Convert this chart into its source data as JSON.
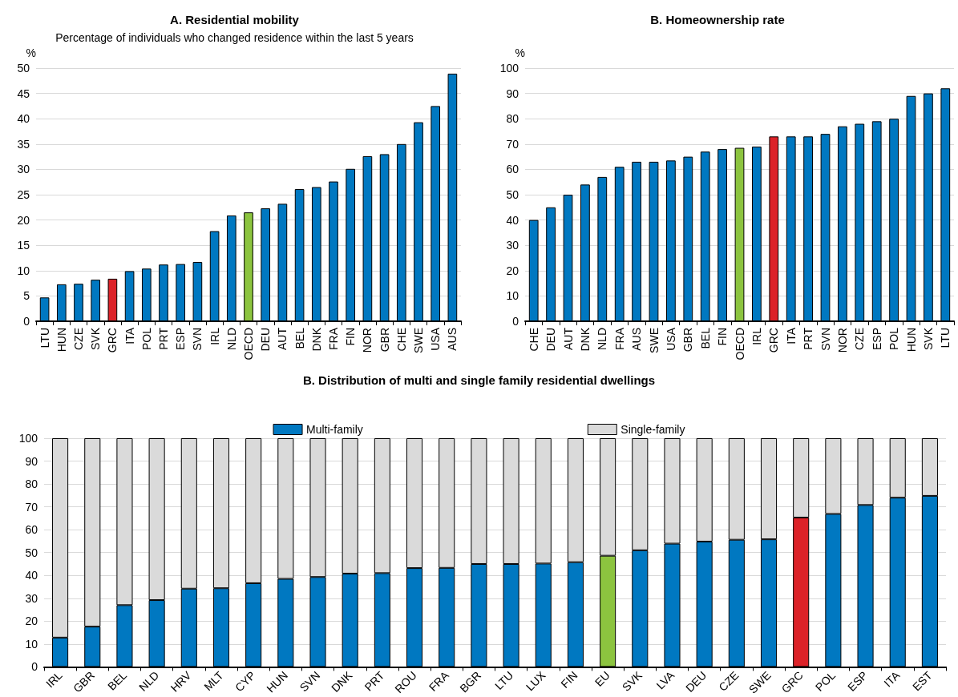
{
  "chart_data": [
    {
      "type": "bar",
      "title": "A. Residential mobility",
      "subtitle": "Percentage of individuals who changed residence within the last 5 years",
      "ylabel": "%",
      "categories": [
        "LTU",
        "HUN",
        "CZE",
        "SVK",
        "GRC",
        "ITA",
        "POL",
        "PRT",
        "ESP",
        "SVN",
        "IRL",
        "NLD",
        "OECD",
        "DEU",
        "AUT",
        "BEL",
        "DNK",
        "FRA",
        "FIN",
        "NOR",
        "GBR",
        "CHE",
        "SWE",
        "USA",
        "AUS"
      ],
      "values": [
        4.7,
        7.3,
        7.4,
        8.2,
        8.4,
        9.9,
        10.4,
        11.2,
        11.3,
        11.7,
        17.8,
        20.9,
        21.5,
        22.3,
        23.2,
        26.1,
        26.5,
        27.6,
        30.1,
        32.6,
        33.0,
        35.0,
        39.3,
        42.5,
        48.9
      ],
      "colors": [
        "#0078c1",
        "#0078c1",
        "#0078c1",
        "#0078c1",
        "#dc2228",
        "#0078c1",
        "#0078c1",
        "#0078c1",
        "#0078c1",
        "#0078c1",
        "#0078c1",
        "#0078c1",
        "#8cc43f",
        "#0078c1",
        "#0078c1",
        "#0078c1",
        "#0078c1",
        "#0078c1",
        "#0078c1",
        "#0078c1",
        "#0078c1",
        "#0078c1",
        "#0078c1",
        "#0078c1",
        "#0078c1"
      ],
      "ylim": [
        0,
        50
      ],
      "yticks": [
        0,
        5,
        10,
        15,
        20,
        25,
        30,
        35,
        40,
        45,
        50
      ],
      "grid": "y"
    },
    {
      "type": "bar",
      "title": "B. Homeownership rate",
      "ylabel": "%",
      "categories": [
        "CHE",
        "DEU",
        "AUT",
        "DNK",
        "NLD",
        "FRA",
        "AUS",
        "SWE",
        "USA",
        "GBR",
        "BEL",
        "FIN",
        "OECD",
        "IRL",
        "GRC",
        "ITA",
        "PRT",
        "SVN",
        "NOR",
        "CZE",
        "ESP",
        "POL",
        "HUN",
        "SVK",
        "LTU"
      ],
      "values": [
        40,
        45,
        50,
        54,
        57,
        61,
        63,
        63,
        63.5,
        65,
        67,
        68,
        68.5,
        69,
        73,
        73,
        73,
        74,
        77,
        78,
        79,
        80,
        89,
        90,
        92
      ],
      "colors": [
        "#0078c1",
        "#0078c1",
        "#0078c1",
        "#0078c1",
        "#0078c1",
        "#0078c1",
        "#0078c1",
        "#0078c1",
        "#0078c1",
        "#0078c1",
        "#0078c1",
        "#0078c1",
        "#8cc43f",
        "#0078c1",
        "#dc2228",
        "#0078c1",
        "#0078c1",
        "#0078c1",
        "#0078c1",
        "#0078c1",
        "#0078c1",
        "#0078c1",
        "#0078c1",
        "#0078c1",
        "#0078c1"
      ],
      "ylim": [
        0,
        100
      ],
      "yticks": [
        0,
        10,
        20,
        30,
        40,
        50,
        60,
        70,
        80,
        90,
        100
      ],
      "grid": "y"
    },
    {
      "type": "bar",
      "title": "B. Distribution of multi and single family residential dwellings",
      "stacked": true,
      "legend": "top",
      "categories": [
        "IRL",
        "GBR",
        "BEL",
        "NLD",
        "HRV",
        "MLT",
        "CYP",
        "HUN",
        "SVN",
        "DNK",
        "PRT",
        "ROU",
        "FRA",
        "BGR",
        "LTU",
        "LUX",
        "FIN",
        "EU",
        "SVK",
        "LVA",
        "DEU",
        "CZE",
        "SWE",
        "GRC",
        "POL",
        "ESP",
        "ITA",
        "EST"
      ],
      "series": [
        {
          "name": "Multi-family",
          "color": "#0078c1",
          "colors": [
            "#0078c1",
            "#0078c1",
            "#0078c1",
            "#0078c1",
            "#0078c1",
            "#0078c1",
            "#0078c1",
            "#0078c1",
            "#0078c1",
            "#0078c1",
            "#0078c1",
            "#0078c1",
            "#0078c1",
            "#0078c1",
            "#0078c1",
            "#0078c1",
            "#0078c1",
            "#8cc43f",
            "#0078c1",
            "#0078c1",
            "#0078c1",
            "#0078c1",
            "#0078c1",
            "#dc2228",
            "#0078c1",
            "#0078c1",
            "#0078c1",
            "#0078c1"
          ],
          "values": [
            12.8,
            17.6,
            27,
            29.2,
            34.2,
            34.4,
            36.6,
            38.5,
            39.3,
            40.8,
            41,
            43.2,
            43.3,
            45,
            45,
            45.2,
            45.8,
            48.6,
            51,
            53.9,
            54.8,
            55.6,
            55.8,
            65.3,
            66.9,
            70.8,
            74,
            74.8
          ]
        },
        {
          "name": "Single-family",
          "color": "#dadada",
          "values": [
            87.2,
            82.4,
            73,
            70.8,
            65.8,
            65.6,
            63.4,
            61.5,
            60.7,
            59.2,
            59,
            56.8,
            56.7,
            55,
            55,
            54.8,
            54.2,
            51.4,
            49,
            46.1,
            45.2,
            44.4,
            44.2,
            34.7,
            33.1,
            29.2,
            26,
            25.2
          ]
        }
      ],
      "ylim": [
        0,
        100
      ],
      "yticks": [
        0,
        10,
        20,
        30,
        40,
        50,
        60,
        70,
        80,
        90,
        100
      ],
      "grid": "y"
    }
  ]
}
